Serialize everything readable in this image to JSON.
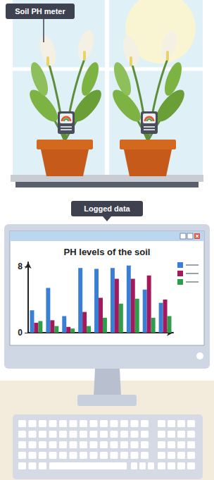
{
  "callouts": {
    "meter": "Soil PH meter",
    "screen": "Logged data"
  },
  "chart_data": {
    "type": "bar",
    "title": "PH levels of the soil",
    "categories": [
      null,
      null,
      null,
      null,
      null,
      null,
      null,
      null,
      null
    ],
    "series": [
      {
        "color": "#3a7fd6",
        "values": [
          2.7,
          5.4,
          2.0,
          7.8,
          7.7,
          7.8,
          8.1,
          5.2,
          3.6
        ]
      },
      {
        "color": "#a3195b",
        "values": [
          1.2,
          1.5,
          0.7,
          2.5,
          4.2,
          6.5,
          6.5,
          6.9,
          4.0
        ]
      },
      {
        "color": "#2e9e4a",
        "values": [
          1.4,
          0.8,
          0.5,
          0.8,
          1.8,
          3.5,
          4.1,
          1.8,
          2.0
        ]
      }
    ],
    "ylim": [
      0,
      8.5
    ],
    "yticks": [
      0,
      8
    ],
    "grid": false,
    "legend": "top-right",
    "tick_labels": "y"
  }
}
